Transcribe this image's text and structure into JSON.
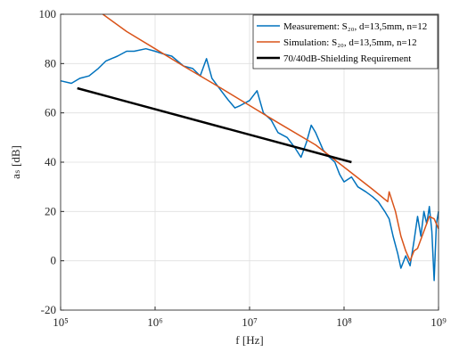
{
  "chart_data": {
    "type": "line",
    "xlabel": "f [Hz]",
    "ylabel": "aₛ [dB]",
    "xscale": "log",
    "grid": true,
    "legend": "upper right",
    "xlim": [
      100000,
      1000000000
    ],
    "ylim": [
      -20,
      100
    ],
    "xticks": [
      {
        "value": 100000,
        "label": "10⁵"
      },
      {
        "value": 1000000,
        "label": "10⁶"
      },
      {
        "value": 10000000,
        "label": "10⁷"
      },
      {
        "value": 100000000,
        "label": "10⁸"
      },
      {
        "value": 1000000000,
        "label": "10⁹"
      }
    ],
    "yticks": [
      -20,
      0,
      20,
      40,
      60,
      80,
      100
    ],
    "series": [
      {
        "name": "Measurement: S₂₀, d=13,5mm, n=12",
        "color": "#0072bd",
        "width": 1.5,
        "x": [
          100000,
          130000,
          160000,
          200000,
          250000,
          300000,
          400000,
          500000,
          600000,
          800000,
          1000000,
          1200000,
          1500000,
          2000000,
          2500000,
          3000000,
          3500000,
          4000000,
          5000000,
          6000000,
          7000000,
          8000000,
          10000000,
          12000000,
          14000000,
          17000000,
          20000000,
          25000000,
          30000000,
          35000000,
          40000000,
          45000000,
          50000000,
          60000000,
          70000000,
          80000000,
          90000000,
          100000000,
          120000000,
          140000000,
          170000000,
          200000000,
          230000000,
          270000000,
          300000000,
          330000000,
          370000000,
          400000000,
          450000000,
          500000000,
          550000000,
          600000000,
          650000000,
          700000000,
          750000000,
          800000000,
          850000000,
          900000000,
          950000000,
          1000000000
        ],
        "values": [
          73,
          72,
          74,
          75,
          78,
          81,
          83,
          85,
          85,
          86,
          85,
          84,
          83,
          79,
          78,
          75,
          82,
          74,
          69,
          65,
          62,
          63,
          65,
          69,
          60,
          57,
          52,
          50,
          46,
          42,
          48,
          55,
          52,
          45,
          42,
          40,
          35,
          32,
          34,
          30,
          28,
          26,
          24,
          20,
          17,
          10,
          3,
          -3,
          2,
          -2,
          8,
          18,
          10,
          20,
          15,
          22,
          12,
          -8,
          15,
          20
        ]
      },
      {
        "name": "Simulation: S₂₀, d=13,5mm, n=12",
        "color": "#d95319",
        "width": 1.5,
        "x": [
          280000,
          500000,
          1000000,
          2000000,
          5000000,
          10000000,
          20000000,
          50000000,
          100000000,
          200000000,
          290000000,
          300000000,
          350000000,
          400000000,
          450000000,
          500000000,
          550000000,
          600000000,
          700000000,
          800000000,
          900000000,
          1000000000
        ],
        "values": [
          100,
          93,
          86,
          79,
          70,
          63,
          56,
          47,
          38,
          29,
          24,
          28,
          20,
          10,
          4,
          0,
          4,
          5,
          12,
          18,
          17,
          13
        ]
      },
      {
        "name": "70/40dB-Shielding Requirement",
        "color": "#000000",
        "width": 2.5,
        "x": [
          150000,
          120000000
        ],
        "values": [
          70,
          40
        ]
      }
    ]
  }
}
